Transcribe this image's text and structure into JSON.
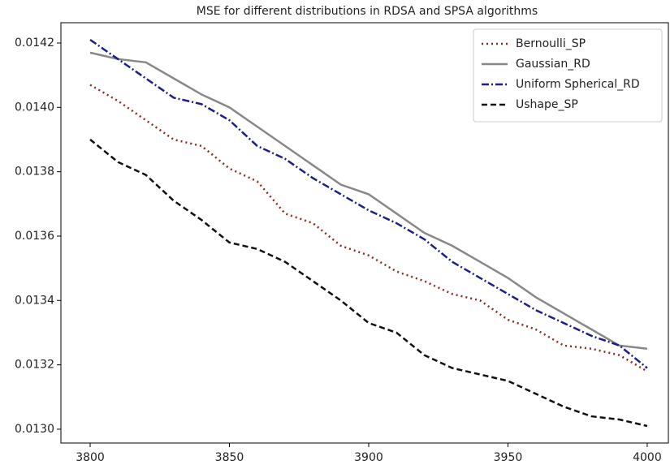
{
  "chart_data": {
    "type": "line",
    "title": "MSE for different distributions in RDSA and SPSA algorithms",
    "x": [
      3800,
      3810,
      3820,
      3830,
      3840,
      3850,
      3860,
      3870,
      3880,
      3890,
      3900,
      3910,
      3920,
      3930,
      3940,
      3950,
      3960,
      3970,
      3980,
      3990,
      4000
    ],
    "series": [
      {
        "name": "Bernoulli_SP",
        "color": "#8b2a1f",
        "linestyle": "dotted",
        "values": [
          0.01407,
          0.01402,
          0.01396,
          0.0139,
          0.01388,
          0.01381,
          0.01377,
          0.01367,
          0.01364,
          0.01357,
          0.01354,
          0.01349,
          0.01346,
          0.01342,
          0.0134,
          0.01334,
          0.01331,
          0.01326,
          0.01325,
          0.01323,
          0.01318
        ]
      },
      {
        "name": "Gaussian_RD",
        "color": "#888888",
        "linestyle": "solid",
        "values": [
          0.01417,
          0.01415,
          0.01414,
          0.01409,
          0.01404,
          0.014,
          0.01394,
          0.01388,
          0.01382,
          0.01376,
          0.01373,
          0.01367,
          0.01361,
          0.01357,
          0.01352,
          0.01347,
          0.01341,
          0.01336,
          0.01331,
          0.01326,
          0.01325
        ]
      },
      {
        "name": "Uniform Spherical_RD",
        "color": "#1a1f8c",
        "linestyle": "dashdot",
        "values": [
          0.01421,
          0.01415,
          0.01409,
          0.01403,
          0.01401,
          0.01396,
          0.01388,
          0.01384,
          0.01378,
          0.01373,
          0.01368,
          0.01364,
          0.01359,
          0.01352,
          0.01347,
          0.01342,
          0.01337,
          0.01333,
          0.01329,
          0.01326,
          0.01319
        ]
      },
      {
        "name": "Ushape_SP",
        "color": "#111111",
        "linestyle": "dashed",
        "values": [
          0.0139,
          0.01383,
          0.01379,
          0.01371,
          0.01365,
          0.01358,
          0.01356,
          0.01352,
          0.01346,
          0.0134,
          0.01333,
          0.0133,
          0.01323,
          0.01319,
          0.01317,
          0.01315,
          0.01311,
          0.01307,
          0.01304,
          0.01303,
          0.01301
        ]
      }
    ],
    "xlim": [
      3789.5,
      4007.6
    ],
    "ylim": [
      0.012957,
      0.014263
    ],
    "xticks": [
      3800,
      3850,
      3900,
      3950,
      4000
    ],
    "yticks": [
      {
        "value": 0.013,
        "label": "0.0130"
      },
      {
        "value": 0.0132,
        "label": "0.0132"
      },
      {
        "value": 0.0134,
        "label": "0.0134"
      },
      {
        "value": 0.0136,
        "label": "0.0136"
      },
      {
        "value": 0.0138,
        "label": "0.0138"
      },
      {
        "value": 0.014,
        "label": "0.0140"
      },
      {
        "value": 0.0142,
        "label": "0.0142"
      }
    ],
    "legend": "upper right"
  }
}
